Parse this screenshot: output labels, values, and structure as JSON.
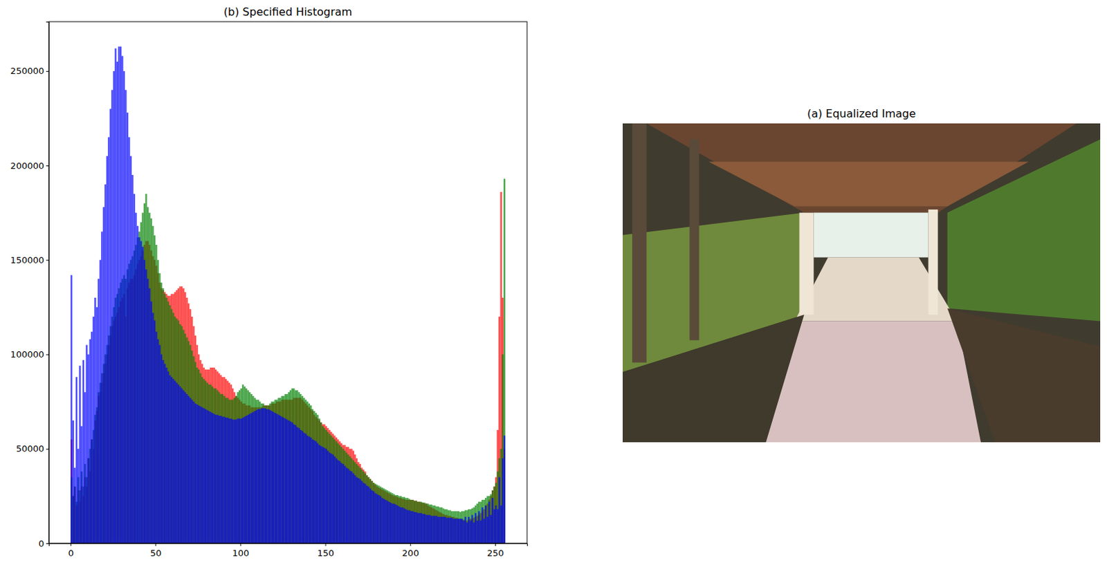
{
  "chart_data": {
    "type": "histogram",
    "title": "(b) Specified Histogram",
    "bins": [
      0,
      1,
      2,
      3,
      4,
      5,
      6,
      7,
      8,
      9,
      10,
      11,
      12,
      13,
      14,
      15,
      16,
      17,
      18,
      19,
      20,
      21,
      22,
      23,
      24,
      25,
      26,
      27,
      28,
      29,
      30,
      31,
      32,
      33,
      34,
      35,
      36,
      37,
      38,
      39,
      40,
      41,
      42,
      43,
      44,
      45,
      46,
      47,
      48,
      49,
      50,
      51,
      52,
      53,
      54,
      55,
      56,
      57,
      58,
      59,
      60,
      61,
      62,
      63,
      64,
      65,
      66,
      67,
      68,
      69,
      70,
      71,
      72,
      73,
      74,
      75,
      76,
      77,
      78,
      79,
      80,
      81,
      82,
      83,
      84,
      85,
      86,
      87,
      88,
      89,
      90,
      91,
      92,
      93,
      94,
      95,
      96,
      97,
      98,
      99,
      100,
      101,
      102,
      103,
      104,
      105,
      106,
      107,
      108,
      109,
      110,
      111,
      112,
      113,
      114,
      115,
      116,
      117,
      118,
      119,
      120,
      121,
      122,
      123,
      124,
      125,
      126,
      127,
      128,
      129,
      130,
      131,
      132,
      133,
      134,
      135,
      136,
      137,
      138,
      139,
      140,
      141,
      142,
      143,
      144,
      145,
      146,
      147,
      148,
      149,
      150,
      151,
      152,
      153,
      154,
      155,
      156,
      157,
      158,
      159,
      160,
      161,
      162,
      163,
      164,
      165,
      166,
      167,
      168,
      169,
      170,
      171,
      172,
      173,
      174,
      175,
      176,
      177,
      178,
      179,
      180,
      181,
      182,
      183,
      184,
      185,
      186,
      187,
      188,
      189,
      190,
      191,
      192,
      193,
      194,
      195,
      196,
      197,
      198,
      199,
      200,
      201,
      202,
      203,
      204,
      205,
      206,
      207,
      208,
      209,
      210,
      211,
      212,
      213,
      214,
      215,
      216,
      217,
      218,
      219,
      220,
      221,
      222,
      223,
      224,
      225,
      226,
      227,
      228,
      229,
      230,
      231,
      232,
      233,
      234,
      235,
      236,
      237,
      238,
      239,
      240,
      241,
      242,
      243,
      244,
      245,
      246,
      247,
      248,
      249,
      250,
      251,
      252,
      253,
      254,
      255,
      256
    ],
    "series": [
      {
        "color": "#ff0000",
        "values": [
          55000,
          25000,
          30000,
          20000,
          28000,
          22000,
          30000,
          25000,
          35000,
          30000,
          45000,
          38000,
          55000,
          50000,
          65000,
          70000,
          78000,
          80000,
          85000,
          90000,
          95000,
          100000,
          105000,
          110000,
          115000,
          118000,
          120000,
          122000,
          125000,
          128000,
          130000,
          132000,
          120000,
          135000,
          138000,
          140000,
          140000,
          142000,
          145000,
          148000,
          150000,
          152000,
          155000,
          158000,
          160000,
          160000,
          158000,
          155000,
          152000,
          150000,
          147000,
          143000,
          138000,
          135000,
          134000,
          133000,
          132000,
          131000,
          131000,
          132000,
          132000,
          133000,
          134000,
          135000,
          136000,
          136000,
          135000,
          133000,
          130000,
          127000,
          124000,
          120000,
          115000,
          110000,
          105000,
          100000,
          97000,
          95000,
          93000,
          92000,
          92000,
          92000,
          93000,
          93000,
          93000,
          92000,
          91000,
          90000,
          89000,
          88000,
          88000,
          87000,
          86000,
          85000,
          84000,
          82000,
          80000,
          78000,
          77000,
          76000,
          75000,
          74000,
          74000,
          73000,
          73000,
          73000,
          72000,
          72000,
          72000,
          72000,
          72000,
          72000,
          72000,
          73000,
          73000,
          73000,
          73000,
          73000,
          74000,
          74000,
          74000,
          75000,
          75000,
          75000,
          76000,
          76000,
          76000,
          76000,
          76000,
          76000,
          76000,
          77000,
          77000,
          77000,
          77000,
          77000,
          76000,
          75000,
          74000,
          73000,
          72000,
          71000,
          70000,
          68000,
          67000,
          66000,
          65000,
          64000,
          63000,
          63000,
          62000,
          61000,
          60000,
          59000,
          58000,
          57000,
          56000,
          55000,
          54000,
          53000,
          52000,
          52000,
          51000,
          51000,
          50000,
          50000,
          49000,
          47000,
          45000,
          43000,
          42000,
          40000,
          39000,
          38000,
          36000,
          35000,
          34000,
          33000,
          32000,
          31000,
          30000,
          29500,
          29000,
          28500,
          28000,
          27500,
          27000,
          26500,
          26000,
          25500,
          25000,
          25000,
          24500,
          24000,
          24000,
          23500,
          23500,
          23000,
          23000,
          23000,
          23000,
          23000,
          22500,
          22500,
          22000,
          22000,
          21500,
          21500,
          21000,
          21000,
          20000,
          19500,
          19000,
          18500,
          18000,
          17500,
          17000,
          16500,
          16000,
          15500,
          15000,
          15000,
          14500,
          14500,
          14000,
          14000,
          13500,
          13500,
          13000,
          13000,
          12500,
          12500,
          12000,
          12000,
          12500,
          13000,
          13000,
          13500,
          14000,
          14500,
          15000,
          16000,
          17000,
          18000,
          20000,
          21000,
          23000,
          25000,
          28000,
          30000,
          35000,
          60000,
          120000,
          186000,
          130000,
          50000
        ]
      },
      {
        "color": "#008000",
        "values": [
          35000,
          25000,
          30000,
          22000,
          35000,
          28000,
          38000,
          30000,
          42000,
          35000,
          45000,
          50000,
          55000,
          60000,
          68000,
          72000,
          80000,
          85000,
          90000,
          95000,
          100000,
          105000,
          110000,
          115000,
          120000,
          125000,
          130000,
          132000,
          135000,
          138000,
          140000,
          142000,
          140000,
          145000,
          148000,
          150000,
          152000,
          155000,
          158000,
          162000,
          165000,
          170000,
          175000,
          180000,
          185000,
          178000,
          175000,
          172000,
          168000,
          163000,
          158000,
          150000,
          143000,
          138000,
          135000,
          132000,
          130000,
          128000,
          126000,
          124000,
          122000,
          120000,
          119000,
          118000,
          116000,
          115000,
          113000,
          111000,
          109000,
          107000,
          105000,
          102000,
          99000,
          96000,
          93000,
          92000,
          90000,
          88000,
          87000,
          86000,
          85000,
          84000,
          84000,
          83000,
          82000,
          82000,
          81000,
          80000,
          79000,
          79000,
          78000,
          77000,
          77000,
          76000,
          76000,
          76000,
          77000,
          78000,
          80000,
          81000,
          82000,
          84000,
          83000,
          82000,
          81000,
          80000,
          79000,
          78000,
          77000,
          76000,
          76000,
          75000,
          74000,
          74000,
          73000,
          73000,
          73000,
          74000,
          75000,
          75000,
          76000,
          76000,
          77000,
          77000,
          78000,
          78000,
          79000,
          79000,
          80000,
          81000,
          82000,
          82000,
          81000,
          81000,
          80000,
          79000,
          78000,
          77000,
          76000,
          75000,
          74000,
          73000,
          71000,
          70000,
          69000,
          68000,
          66000,
          64000,
          62000,
          61000,
          60000,
          59000,
          58000,
          57000,
          56000,
          55000,
          54000,
          53000,
          52000,
          51000,
          50000,
          49000,
          48000,
          47000,
          46000,
          45000,
          44000,
          43000,
          42000,
          41000,
          40000,
          39000,
          38000,
          37000,
          36000,
          35000,
          34000,
          33000,
          32000,
          31500,
          31000,
          30500,
          30000,
          29500,
          29000,
          28500,
          28000,
          27500,
          27000,
          26500,
          26000,
          25500,
          25500,
          25000,
          25000,
          24500,
          24500,
          24000,
          24000,
          23500,
          23000,
          23000,
          22500,
          22500,
          22000,
          22000,
          22000,
          21500,
          21500,
          21000,
          21000,
          20500,
          20500,
          20000,
          20000,
          19500,
          19500,
          19000,
          19000,
          18500,
          18000,
          18000,
          17500,
          17500,
          17000,
          17000,
          17000,
          17000,
          17000,
          16500,
          17000,
          17000,
          17500,
          17500,
          18000,
          18000,
          18500,
          19000,
          20000,
          21000,
          22000,
          22000,
          23000,
          23000,
          24000,
          25000,
          25000,
          26000,
          28000,
          30000,
          32000,
          38000,
          45000,
          50000,
          100000,
          193000
        ]
      },
      {
        "color": "#0000ff",
        "values": [
          142000,
          65000,
          40000,
          88000,
          50000,
          94000,
          62000,
          97000,
          80000,
          105000,
          100000,
          108000,
          112000,
          120000,
          130000,
          125000,
          140000,
          150000,
          165000,
          178000,
          190000,
          205000,
          215000,
          230000,
          240000,
          250000,
          262000,
          255000,
          263000,
          263000,
          258000,
          250000,
          240000,
          228000,
          215000,
          205000,
          195000,
          185000,
          175000,
          168000,
          162000,
          160000,
          157000,
          150000,
          145000,
          140000,
          135000,
          128000,
          122000,
          118000,
          112000,
          108000,
          105000,
          100000,
          97000,
          95000,
          93000,
          91000,
          89000,
          88000,
          87000,
          86000,
          85000,
          84000,
          83000,
          82000,
          81000,
          80000,
          79000,
          78000,
          77000,
          76000,
          75000,
          74000,
          73500,
          73000,
          72500,
          72000,
          71500,
          71000,
          70500,
          70000,
          69500,
          69000,
          68500,
          68000,
          68000,
          67500,
          67500,
          67000,
          67000,
          66500,
          66500,
          66000,
          66000,
          65500,
          65500,
          65500,
          66000,
          66000,
          66000,
          66500,
          67000,
          67500,
          68000,
          68500,
          69000,
          69500,
          70000,
          70500,
          71000,
          71000,
          71500,
          71500,
          71500,
          71000,
          71000,
          70500,
          70000,
          69500,
          69000,
          68500,
          68000,
          67500,
          67000,
          66500,
          66000,
          65500,
          65000,
          64500,
          64000,
          63000,
          62500,
          61500,
          61000,
          60000,
          59500,
          58500,
          58000,
          57000,
          56500,
          56000,
          55000,
          54500,
          54000,
          53000,
          52000,
          51500,
          51000,
          50500,
          50000,
          49000,
          48000,
          47500,
          47000,
          46000,
          45000,
          44000,
          43500,
          42500,
          42000,
          41000,
          40000,
          39500,
          38500,
          38000,
          37000,
          36000,
          35000,
          34500,
          34000,
          33000,
          32000,
          31500,
          30500,
          30000,
          29000,
          28000,
          27500,
          26500,
          26000,
          25500,
          25000,
          24000,
          23500,
          23000,
          22500,
          22000,
          21500,
          21000,
          21000,
          20500,
          20000,
          19500,
          19000,
          19000,
          18500,
          18000,
          17500,
          17500,
          17000,
          17000,
          16500,
          16500,
          16000,
          16000,
          16000,
          15500,
          15500,
          15000,
          15000,
          15000,
          14500,
          14500,
          14500,
          14500,
          14000,
          14000,
          14000,
          14000,
          14000,
          13500,
          13500,
          13500,
          13500,
          13000,
          13000,
          13000,
          13000,
          13000,
          13000,
          12000,
          14000,
          11000,
          14000,
          12000,
          15000,
          11000,
          16000,
          12000,
          17000,
          12000,
          19000,
          13000,
          20000,
          14000,
          22000,
          15000,
          24000,
          18000,
          20000,
          18000,
          35000,
          20000,
          45000,
          57000
        ]
      }
    ],
    "xlim": [
      -12.8,
      268.8
    ],
    "xticks": [
      0,
      50,
      100,
      150,
      200,
      250
    ],
    "ylim": [
      0,
      276150
    ],
    "yticks": [
      0,
      50000,
      100000,
      150000,
      200000,
      250000
    ]
  },
  "image_panel": {
    "title": "(a) Equalized Image"
  }
}
